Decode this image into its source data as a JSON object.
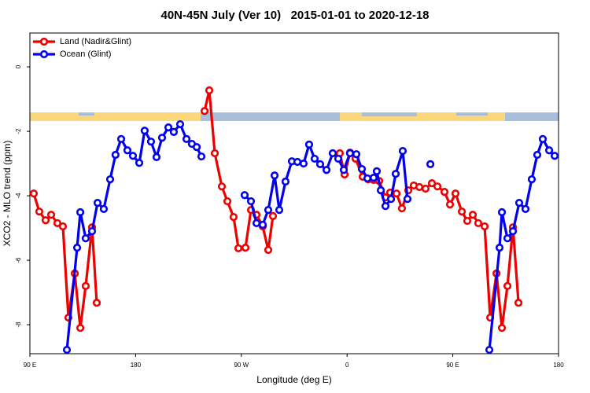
{
  "chart_data": {
    "type": "line",
    "title": "40N-45N July (Ver 10)   2015-01-01 to 2020-12-18",
    "x_label": "Longitude (deg E)",
    "y_label": "XCO2 - MLO trend (ppm)",
    "xlim": [
      90,
      540
    ],
    "xticks": [
      {
        "value": 90,
        "label": "90 E"
      },
      180,
      {
        "value": 270,
        "label": "90 W"
      },
      {
        "value": 360,
        "label": "0"
      },
      {
        "value": 450,
        "label": "90 E"
      },
      {
        "value": 540,
        "label": "180"
      }
    ],
    "ylim": [
      -8.9,
      1.05
    ],
    "yticks": [
      0,
      -2,
      -4,
      -6,
      -8
    ],
    "legend": "top-left",
    "series": [
      {
        "name": "Land (Nadir&Glint)",
        "color": "#ee0000",
        "x": [
          93.3,
          98.0,
          103.4,
          108.1,
          113.4,
          118.1,
          122.8,
          128.2,
          132.9,
          137.5,
          142.9,
          146.9,
          null,
          238.7,
          242.7,
          247.4,
          253.4,
          258.1,
          263.4,
          267.5,
          273.5,
          278.2,
          282.9,
          288.2,
          292.9,
          296.9,
          null,
          353.8,
          357.9,
          362.5,
          367.2,
          373.3,
          377.9,
          382.6,
          387.3,
          392.7,
          396.7,
          402.1,
          406.7,
          412.1,
          416.8,
          421.5,
          426.8,
          432.2,
          436.9,
          442.9,
          447.6,
          452.3,
          457.7,
          462.3,
          467.0,
          471.7,
          477.1,
          481.8,
          487.2,
          491.8,
          496.5,
          501.2,
          505.9
        ],
        "values": [
          -3.93,
          -4.49,
          -4.76,
          -4.59,
          -4.85,
          -4.95,
          -7.78,
          -6.41,
          -8.1,
          -6.8,
          -4.98,
          -7.32,
          null,
          -1.37,
          -0.73,
          -2.68,
          -3.71,
          -4.17,
          -4.66,
          -5.63,
          -5.61,
          -4.44,
          -4.59,
          -4.95,
          -5.68,
          -4.63,
          null,
          -2.68,
          -3.34,
          -2.66,
          -2.85,
          -3.41,
          -3.49,
          -3.51,
          -3.54,
          -4.05,
          -3.9,
          -3.93,
          -4.39,
          -3.83,
          -3.68,
          -3.73,
          -3.78,
          -3.61,
          -3.71,
          -3.88,
          -4.27,
          -3.93,
          -4.49,
          -4.78,
          -4.59,
          -4.85,
          -4.95,
          -7.78,
          -6.41,
          -8.1,
          -6.8,
          -4.98,
          -7.32
        ]
      },
      {
        "name": "Ocean (Glint)",
        "color": "#0000ee",
        "x": [
          121.5,
          130.2,
          132.9,
          137.5,
          142.9,
          147.6,
          152.9,
          158.3,
          162.9,
          167.7,
          173.0,
          177.7,
          183.1,
          187.7,
          193.1,
          197.8,
          202.5,
          207.9,
          212.5,
          217.9,
          223.3,
          227.9,
          232.0,
          236.0,
          null,
          272.8,
          278.2,
          282.9,
          288.2,
          292.9,
          298.3,
          302.3,
          307.6,
          313.0,
          317.7,
          323.0,
          327.7,
          332.4,
          337.1,
          342.5,
          347.8,
          352.5,
          357.2,
          362.5,
          367.9,
          372.6,
          377.3,
          382.6,
          385.3,
          388.7,
          392.7,
          397.4,
          401.4,
          407.4,
          411.4,
          null,
          430.9,
          null,
          481.1,
          489.8,
          491.8,
          496.5,
          501.2,
          506.5,
          511.9,
          517.2,
          521.9,
          526.6,
          532.0,
          536.7
        ],
        "values": [
          -8.78,
          -5.61,
          -4.51,
          -5.32,
          -5.1,
          -4.22,
          -4.41,
          -3.49,
          -2.73,
          -2.24,
          -2.59,
          -2.76,
          -2.98,
          -1.98,
          -2.32,
          -2.8,
          -2.2,
          -1.88,
          -2.02,
          -1.78,
          -2.24,
          -2.39,
          -2.49,
          -2.78,
          null,
          -3.98,
          -4.17,
          -4.85,
          -4.9,
          -4.44,
          -3.37,
          -4.44,
          -3.56,
          -2.93,
          -2.95,
          -3.0,
          -2.41,
          -2.85,
          -3.02,
          -3.2,
          -2.68,
          -2.85,
          -3.2,
          -2.68,
          -2.71,
          -3.17,
          -3.46,
          -3.44,
          -3.24,
          -3.83,
          -4.32,
          -4.1,
          -3.32,
          -2.61,
          -4.1,
          null,
          -3.02,
          null,
          -8.78,
          -5.61,
          -4.51,
          -5.32,
          -5.1,
          -4.22,
          -4.41,
          -3.49,
          -2.73,
          -2.24,
          -2.59,
          -2.76
        ]
      }
    ]
  }
}
